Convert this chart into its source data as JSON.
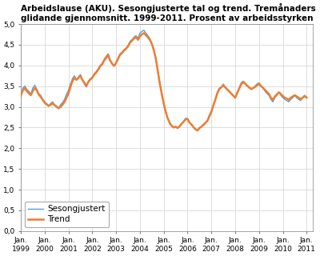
{
  "title": "Arbeidslause (AKU). Sesongjusterte tal og trend. Tremånaders\nglidande gjennomsnitt. 1999-2011. Prosent av arbeidsstyrken",
  "ylim": [
    0.0,
    5.0
  ],
  "yticks": [
    0.0,
    0.5,
    1.0,
    1.5,
    2.0,
    2.5,
    3.0,
    3.5,
    4.0,
    4.5,
    5.0
  ],
  "line_color_seas": "#5b9bd5",
  "line_color_trend": "#ed7d31",
  "legend_labels": [
    "Sesongjustert",
    "Trend"
  ],
  "x_tick_years": [
    1999,
    2000,
    2001,
    2002,
    2003,
    2004,
    2005,
    2006,
    2007,
    2008,
    2009,
    2010,
    2011
  ],
  "sesongjustert": [
    3.22,
    3.45,
    3.5,
    3.42,
    3.38,
    3.3,
    3.45,
    3.52,
    3.43,
    3.32,
    3.28,
    3.18,
    3.12,
    3.08,
    3.02,
    3.08,
    3.12,
    3.05,
    3.02,
    2.95,
    3.05,
    3.1,
    3.18,
    3.3,
    3.4,
    3.55,
    3.68,
    3.75,
    3.65,
    3.72,
    3.78,
    3.65,
    3.55,
    3.48,
    3.62,
    3.68,
    3.72,
    3.8,
    3.85,
    3.92,
    4.0,
    4.05,
    4.15,
    4.22,
    4.28,
    4.12,
    4.05,
    3.98,
    4.08,
    4.18,
    4.28,
    4.32,
    4.38,
    4.42,
    4.48,
    4.58,
    4.62,
    4.68,
    4.72,
    4.65,
    4.78,
    4.82,
    4.85,
    4.78,
    4.72,
    4.65,
    4.52,
    4.38,
    4.18,
    3.88,
    3.58,
    3.32,
    3.08,
    2.88,
    2.72,
    2.62,
    2.55,
    2.5,
    2.52,
    2.48,
    2.52,
    2.6,
    2.65,
    2.72,
    2.72,
    2.62,
    2.58,
    2.5,
    2.45,
    2.42,
    2.48,
    2.52,
    2.58,
    2.62,
    2.68,
    2.8,
    2.9,
    3.05,
    3.18,
    3.35,
    3.45,
    3.48,
    3.55,
    3.48,
    3.42,
    3.38,
    3.32,
    3.28,
    3.22,
    3.35,
    3.45,
    3.58,
    3.62,
    3.58,
    3.52,
    3.48,
    3.42,
    3.45,
    3.5,
    3.55,
    3.58,
    3.52,
    3.45,
    3.38,
    3.32,
    3.28,
    3.18,
    3.12,
    3.22,
    3.28,
    3.35,
    3.28,
    3.22,
    3.18,
    3.15,
    3.12,
    3.18,
    3.22,
    3.28,
    3.22,
    3.18,
    3.15,
    3.22,
    3.28,
    3.22
  ],
  "trend": [
    3.28,
    3.4,
    3.45,
    3.38,
    3.33,
    3.28,
    3.38,
    3.45,
    3.4,
    3.3,
    3.24,
    3.17,
    3.1,
    3.06,
    3.02,
    3.05,
    3.08,
    3.04,
    3.0,
    2.97,
    3.0,
    3.05,
    3.12,
    3.22,
    3.32,
    3.48,
    3.62,
    3.7,
    3.65,
    3.7,
    3.75,
    3.65,
    3.58,
    3.5,
    3.6,
    3.66,
    3.7,
    3.78,
    3.83,
    3.9,
    3.98,
    4.03,
    4.12,
    4.18,
    4.25,
    4.12,
    4.04,
    3.99,
    4.06,
    4.16,
    4.26,
    4.3,
    4.36,
    4.4,
    4.46,
    4.55,
    4.6,
    4.65,
    4.68,
    4.62,
    4.7,
    4.75,
    4.78,
    4.73,
    4.68,
    4.62,
    4.52,
    4.37,
    4.17,
    3.87,
    3.57,
    3.31,
    3.08,
    2.88,
    2.72,
    2.61,
    2.54,
    2.5,
    2.52,
    2.49,
    2.53,
    2.59,
    2.64,
    2.7,
    2.7,
    2.62,
    2.57,
    2.51,
    2.46,
    2.43,
    2.49,
    2.52,
    2.56,
    2.61,
    2.66,
    2.77,
    2.88,
    3.03,
    3.17,
    3.33,
    3.43,
    3.47,
    3.52,
    3.47,
    3.42,
    3.37,
    3.32,
    3.27,
    3.22,
    3.33,
    3.44,
    3.54,
    3.6,
    3.56,
    3.51,
    3.47,
    3.43,
    3.45,
    3.48,
    3.52,
    3.55,
    3.5,
    3.46,
    3.41,
    3.36,
    3.31,
    3.22,
    3.17,
    3.25,
    3.3,
    3.35,
    3.31,
    3.26,
    3.22,
    3.2,
    3.17,
    3.22,
    3.25,
    3.28,
    3.25,
    3.22,
    3.19,
    3.22,
    3.26,
    3.22
  ]
}
